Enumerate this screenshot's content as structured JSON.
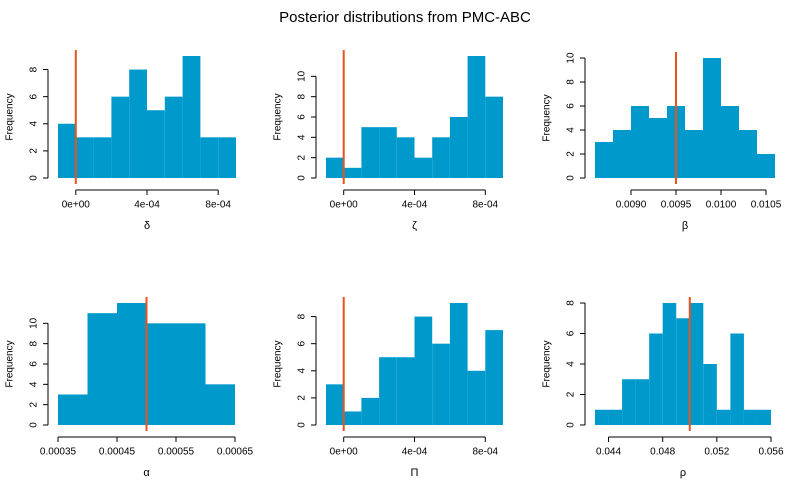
{
  "title": "Posterior distributions from PMC-ABC",
  "chart_data": [
    {
      "type": "histogram",
      "xlabel": "δ",
      "ylabel": "Frequency",
      "color": "#0099cc",
      "bins": [
        -0.0001,
        0,
        0.0001,
        0.0002,
        0.0003,
        0.0004,
        0.0005,
        0.0006,
        0.0007,
        0.0008,
        0.0009
      ],
      "values": [
        4,
        3,
        3,
        6,
        8,
        5,
        6,
        9,
        3,
        3
      ],
      "xlim": [
        -0.0001,
        0.0009
      ],
      "ylim": [
        0,
        9
      ],
      "xticks": [
        {
          "value": 0,
          "label": "0e+00"
        },
        {
          "value": 0.0004,
          "label": "4e-04"
        },
        {
          "value": 0.0008,
          "label": "8e-04"
        }
      ],
      "yticks": [
        0,
        2,
        4,
        6,
        8
      ],
      "reference_line": {
        "value": 0,
        "color": "#e8531f"
      }
    },
    {
      "type": "histogram",
      "xlabel": "ζ",
      "ylabel": "Frequency",
      "color": "#0099cc",
      "bins": [
        -0.0001,
        0,
        0.0001,
        0.0002,
        0.0003,
        0.0004,
        0.0005,
        0.0006,
        0.0007,
        0.0008,
        0.0009
      ],
      "values": [
        2,
        1,
        5,
        5,
        4,
        2,
        4,
        6,
        12,
        8
      ],
      "xlim": [
        -0.0001,
        0.0009
      ],
      "ylim": [
        0,
        12
      ],
      "xticks": [
        {
          "value": 0,
          "label": "0e+00"
        },
        {
          "value": 0.0004,
          "label": "4e-04"
        },
        {
          "value": 0.0008,
          "label": "8e-04"
        }
      ],
      "yticks": [
        0,
        2,
        4,
        6,
        8,
        10
      ],
      "reference_line": {
        "value": 0,
        "color": "#e8531f"
      }
    },
    {
      "type": "histogram",
      "xlabel": "β",
      "ylabel": "Frequency",
      "color": "#0099cc",
      "bins": [
        0.0086,
        0.0088,
        0.009,
        0.0092,
        0.0094,
        0.0096,
        0.0098,
        0.01,
        0.0102,
        0.0104,
        0.0106
      ],
      "values": [
        3,
        4,
        6,
        5,
        6,
        4,
        10,
        6,
        4,
        2
      ],
      "xlim": [
        0.0086,
        0.0106
      ],
      "ylim": [
        0,
        10
      ],
      "xticks": [
        {
          "value": 0.009,
          "label": "0.0090"
        },
        0.0095,
        {
          "value": 0.01,
          "label": "0.0100"
        },
        0.0105
      ],
      "yticks": [
        0,
        2,
        4,
        6,
        8,
        10
      ],
      "reference_line": {
        "value": 0.0095,
        "color": "#e8531f"
      }
    },
    {
      "type": "histogram",
      "xlabel": "α",
      "ylabel": "Frequency",
      "color": "#0099cc",
      "bins": [
        0.00035,
        0.0004,
        0.00045,
        0.0005,
        0.00055,
        0.0006,
        0.00065
      ],
      "values": [
        3,
        11,
        12,
        10,
        10,
        4
      ],
      "xlim": [
        0.00035,
        0.00065
      ],
      "ylim": [
        0,
        12
      ],
      "xticks": [
        0.00035,
        0.00045,
        0.00055,
        0.00065
      ],
      "yticks": [
        0,
        2,
        4,
        6,
        8,
        10
      ],
      "reference_line": {
        "value": 0.0005,
        "color": "#e8531f"
      }
    },
    {
      "type": "histogram",
      "xlabel": "Π",
      "ylabel": "Frequency",
      "color": "#0099cc",
      "bins": [
        -0.0001,
        0,
        0.0001,
        0.0002,
        0.0003,
        0.0004,
        0.0005,
        0.0006,
        0.0007,
        0.0008,
        0.0009
      ],
      "values": [
        3,
        1,
        2,
        5,
        5,
        8,
        6,
        9,
        4,
        7
      ],
      "xlim": [
        -0.0001,
        0.0009
      ],
      "ylim": [
        0,
        9
      ],
      "xticks": [
        {
          "value": 0,
          "label": "0e+00"
        },
        {
          "value": 0.0004,
          "label": "4e-04"
        },
        {
          "value": 0.0008,
          "label": "8e-04"
        }
      ],
      "yticks": [
        0,
        2,
        4,
        6,
        8
      ],
      "reference_line": {
        "value": 0,
        "color": "#e8531f"
      }
    },
    {
      "type": "histogram",
      "xlabel": "ρ",
      "ylabel": "Frequency",
      "color": "#0099cc",
      "bins": [
        0.043,
        0.044,
        0.045,
        0.046,
        0.047,
        0.048,
        0.049,
        0.05,
        0.051,
        0.052,
        0.053,
        0.054,
        0.055,
        0.056
      ],
      "values": [
        1,
        1,
        3,
        3,
        6,
        8,
        7,
        8,
        4,
        1,
        6,
        1,
        1
      ],
      "xlim": [
        0.043,
        0.056
      ],
      "ylim": [
        0,
        8
      ],
      "xticks": [
        0.044,
        0.048,
        0.052,
        0.056
      ],
      "yticks": [
        0,
        2,
        4,
        6,
        8
      ],
      "reference_line": {
        "value": 0.05,
        "color": "#e8531f"
      }
    }
  ]
}
